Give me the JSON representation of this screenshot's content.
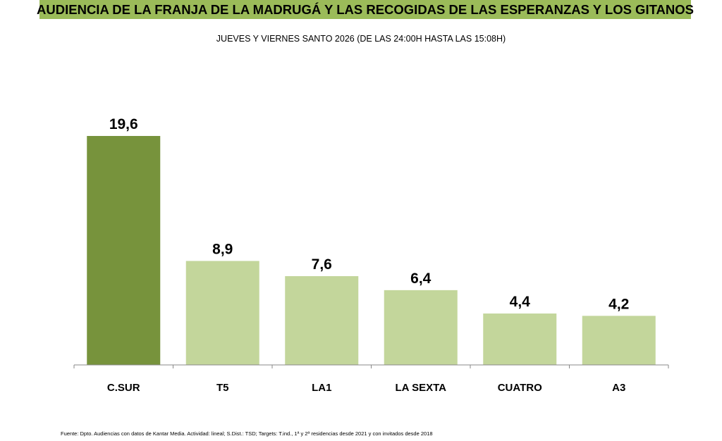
{
  "header": {
    "title": "AUDIENCIA DE LA FRANJA DE LA MADRUGÁ Y LAS RECOGIDAS DE LAS ESPERANZAS Y LOS GITANOS",
    "subtitle": "JUEVES Y VIERNES SANTO 2026 (DE LAS 24:00H HASTA LAS 15:08H)"
  },
  "chart_data": {
    "type": "bar",
    "title": "AUDIENCIA DE LA FRANJA DE LA MADRUGÁ Y LAS RECOGIDAS DE LAS ESPERANZAS Y LOS GITANOS",
    "subtitle": "JUEVES Y VIERNES SANTO 2026 (DE LAS 24:00H HASTA LAS 15:08H)",
    "categories": [
      "C.SUR",
      "T5",
      "LA1",
      "LA SEXTA",
      "CUATRO",
      "A3"
    ],
    "values": [
      19.6,
      8.9,
      7.6,
      6.4,
      4.4,
      4.2
    ],
    "value_labels": [
      "19,6",
      "8,9",
      "7,6",
      "6,4",
      "4,4",
      "4,2"
    ],
    "highlight_index": 0,
    "colors": {
      "highlight": "#77933c",
      "default": "#c3d69b",
      "axis": "#888888"
    },
    "xlabel": "",
    "ylabel": "",
    "ylim": [
      0,
      19.6
    ],
    "grid": false,
    "legend": "none"
  },
  "footer": {
    "source": "Fuente: Dpto. Audiencias con datos de Kantar Media. Actividad: lineal; S.Dist.: TSD; Targets: T.ind., 1ª y 2ª residencias desde 2021 y con invitados desde 2018"
  }
}
